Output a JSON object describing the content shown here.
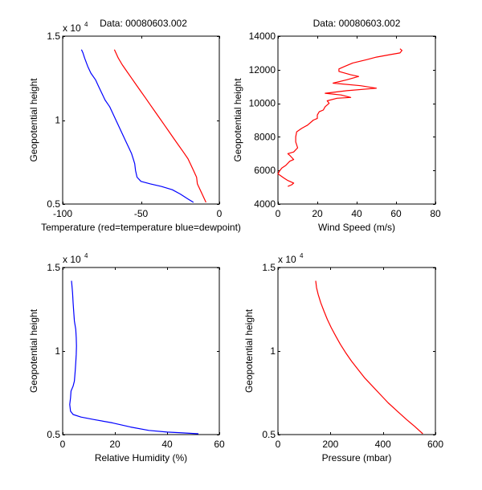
{
  "figure": {
    "background": "#ffffff"
  },
  "chart_data": [
    {
      "id": "temperature",
      "type": "line",
      "title": "Data: 00080603.002",
      "xlabel": "Temperature (red=temperature blue=dewpoint)",
      "ylabel": "Geopotential height",
      "xlim": [
        -100,
        0
      ],
      "ylim": [
        5000,
        15000
      ],
      "xticks": [
        -100,
        -50,
        0
      ],
      "xtick_labels": [
        "-100",
        "-50",
        "0"
      ],
      "yticks": [
        5000,
        10000,
        15000
      ],
      "ytick_labels": [
        "0.5",
        "1",
        "1.5"
      ],
      "y_exponent_label": "x 10",
      "y_exponent_power": "4",
      "grid": false,
      "series": [
        {
          "name": "temperature",
          "color": "#ff0000",
          "points": [
            [
              -8.5,
              5100
            ],
            [
              -10,
              5400
            ],
            [
              -12,
              5800
            ],
            [
              -14,
              6200
            ],
            [
              -14.5,
              6600
            ],
            [
              -16,
              6900
            ],
            [
              -18,
              7300
            ],
            [
              -20,
              7700
            ],
            [
              -23,
              8100
            ],
            [
              -26,
              8500
            ],
            [
              -29,
              8900
            ],
            [
              -32,
              9300
            ],
            [
              -35,
              9700
            ],
            [
              -38,
              10100
            ],
            [
              -41,
              10500
            ],
            [
              -44,
              10900
            ],
            [
              -47,
              11300
            ],
            [
              -50,
              11700
            ],
            [
              -53,
              12100
            ],
            [
              -56,
              12500
            ],
            [
              -59,
              12900
            ],
            [
              -62,
              13300
            ],
            [
              -64.5,
              13700
            ],
            [
              -66,
              14000
            ],
            [
              -67,
              14200
            ]
          ]
        },
        {
          "name": "dewpoint",
          "color": "#0000ff",
          "points": [
            [
              -16.5,
              5100
            ],
            [
              -20,
              5300
            ],
            [
              -25,
              5600
            ],
            [
              -30,
              5850
            ],
            [
              -37,
              6050
            ],
            [
              -44,
              6200
            ],
            [
              -50,
              6350
            ],
            [
              -52.5,
              6600
            ],
            [
              -53.5,
              7000
            ],
            [
              -54,
              7400
            ],
            [
              -55,
              7700
            ],
            [
              -56,
              8000
            ],
            [
              -58,
              8400
            ],
            [
              -60,
              8800
            ],
            [
              -62,
              9200
            ],
            [
              -64,
              9600
            ],
            [
              -66,
              10000
            ],
            [
              -68,
              10400
            ],
            [
              -70,
              10800
            ],
            [
              -73,
              11200
            ],
            [
              -75,
              11600
            ],
            [
              -77,
              12000
            ],
            [
              -79,
              12400
            ],
            [
              -82,
              12800
            ],
            [
              -84,
              13200
            ],
            [
              -86,
              13700
            ],
            [
              -87,
              14000
            ],
            [
              -88,
              14200
            ]
          ]
        }
      ]
    },
    {
      "id": "wind",
      "type": "line",
      "title": "Data: 00080603.002",
      "xlabel": "Wind Speed (m/s)",
      "ylabel": "Geopotential height",
      "xlim": [
        0,
        80
      ],
      "ylim": [
        4000,
        14000
      ],
      "xticks": [
        0,
        20,
        40,
        60,
        80
      ],
      "xtick_labels": [
        "0",
        "20",
        "40",
        "60",
        "80"
      ],
      "yticks": [
        4000,
        6000,
        8000,
        10000,
        12000,
        14000
      ],
      "ytick_labels": [
        "4000",
        "6000",
        "8000",
        "10000",
        "12000",
        "14000"
      ],
      "grid": false,
      "series": [
        {
          "name": "wind speed",
          "color": "#ff0000",
          "points": [
            [
              5,
              5050
            ],
            [
              7,
              5150
            ],
            [
              8,
              5250
            ],
            [
              5,
              5400
            ],
            [
              3,
              5550
            ],
            [
              0,
              5800
            ],
            [
              1,
              6000
            ],
            [
              2,
              6150
            ],
            [
              4,
              6300
            ],
            [
              6,
              6550
            ],
            [
              8,
              6650
            ],
            [
              6,
              6900
            ],
            [
              5,
              7000
            ],
            [
              8,
              7100
            ],
            [
              10,
              7350
            ],
            [
              9,
              7700
            ],
            [
              9,
              8000
            ],
            [
              9.5,
              8300
            ],
            [
              12,
              8500
            ],
            [
              15,
              8700
            ],
            [
              18,
              9000
            ],
            [
              20,
              9100
            ],
            [
              20,
              9300
            ],
            [
              21,
              9500
            ],
            [
              23,
              9600
            ],
            [
              24,
              9800
            ],
            [
              26,
              10000
            ],
            [
              25,
              10150
            ],
            [
              30,
              10300
            ],
            [
              37,
              10350
            ],
            [
              32,
              10500
            ],
            [
              24,
              10600
            ],
            [
              35,
              10750
            ],
            [
              50,
              10900
            ],
            [
              42,
              11050
            ],
            [
              28,
              11200
            ],
            [
              35,
              11400
            ],
            [
              41,
              11600
            ],
            [
              37,
              11700
            ],
            [
              31,
              11900
            ],
            [
              31,
              12050
            ],
            [
              34,
              12200
            ],
            [
              38,
              12400
            ],
            [
              45,
              12600
            ],
            [
              50,
              12750
            ],
            [
              57,
              12900
            ],
            [
              62,
              13000
            ],
            [
              63,
              13150
            ],
            [
              62,
              13250
            ]
          ]
        }
      ]
    },
    {
      "id": "humidity",
      "type": "line",
      "title": "",
      "xlabel": "Relative Humidity (%)",
      "ylabel": "Geopotential height",
      "xlim": [
        0,
        60
      ],
      "ylim": [
        5000,
        15000
      ],
      "xticks": [
        0,
        20,
        40,
        60
      ],
      "xtick_labels": [
        "0",
        "20",
        "40",
        "60"
      ],
      "yticks": [
        5000,
        10000,
        15000
      ],
      "ytick_labels": [
        "0.5",
        "1",
        "1.5"
      ],
      "y_exponent_label": "x 10",
      "y_exponent_power": "4",
      "grid": false,
      "series": [
        {
          "name": "relative humidity",
          "color": "#0000ff",
          "points": [
            [
              52,
              5050
            ],
            [
              46,
              5100
            ],
            [
              40,
              5150
            ],
            [
              33,
              5250
            ],
            [
              26,
              5450
            ],
            [
              19,
              5700
            ],
            [
              12,
              5900
            ],
            [
              7,
              6050
            ],
            [
              4,
              6200
            ],
            [
              3,
              6400
            ],
            [
              2.7,
              6800
            ],
            [
              3,
              7200
            ],
            [
              3.2,
              7600
            ],
            [
              4,
              7900
            ],
            [
              4.5,
              8200
            ],
            [
              4.8,
              8800
            ],
            [
              5,
              9300
            ],
            [
              5.2,
              9800
            ],
            [
              5.3,
              10300
            ],
            [
              5.2,
              10800
            ],
            [
              5,
              11300
            ],
            [
              4.5,
              11800
            ],
            [
              4.2,
              12400
            ],
            [
              4,
              12900
            ],
            [
              3.8,
              13500
            ],
            [
              3.5,
              14000
            ],
            [
              3.4,
              14200
            ]
          ]
        }
      ]
    },
    {
      "id": "pressure",
      "type": "line",
      "title": "",
      "xlabel": "Pressure (mbar)",
      "ylabel": "Geopotential height",
      "xlim": [
        0,
        600
      ],
      "ylim": [
        5000,
        15000
      ],
      "xticks": [
        0,
        200,
        400,
        600
      ],
      "xtick_labels": [
        "0",
        "200",
        "400",
        "600"
      ],
      "yticks": [
        5000,
        10000,
        15000
      ],
      "ytick_labels": [
        "0.5",
        "1",
        "1.5"
      ],
      "y_exponent_label": "x 10",
      "y_exponent_power": "4",
      "grid": false,
      "series": [
        {
          "name": "pressure",
          "color": "#ff0000",
          "points": [
            [
              552,
              5050
            ],
            [
              520,
              5500
            ],
            [
              490,
              5900
            ],
            [
              455,
              6400
            ],
            [
              420,
              6900
            ],
            [
              390,
              7400
            ],
            [
              360,
              7900
            ],
            [
              330,
              8400
            ],
            [
              305,
              8900
            ],
            [
              280,
              9400
            ],
            [
              258,
              9900
            ],
            [
              238,
              10400
            ],
            [
              220,
              10900
            ],
            [
              203,
              11400
            ],
            [
              188,
              11900
            ],
            [
              175,
              12400
            ],
            [
              163,
              12900
            ],
            [
              153,
              13400
            ],
            [
              147,
              13800
            ],
            [
              144,
              14200
            ]
          ]
        }
      ]
    }
  ]
}
